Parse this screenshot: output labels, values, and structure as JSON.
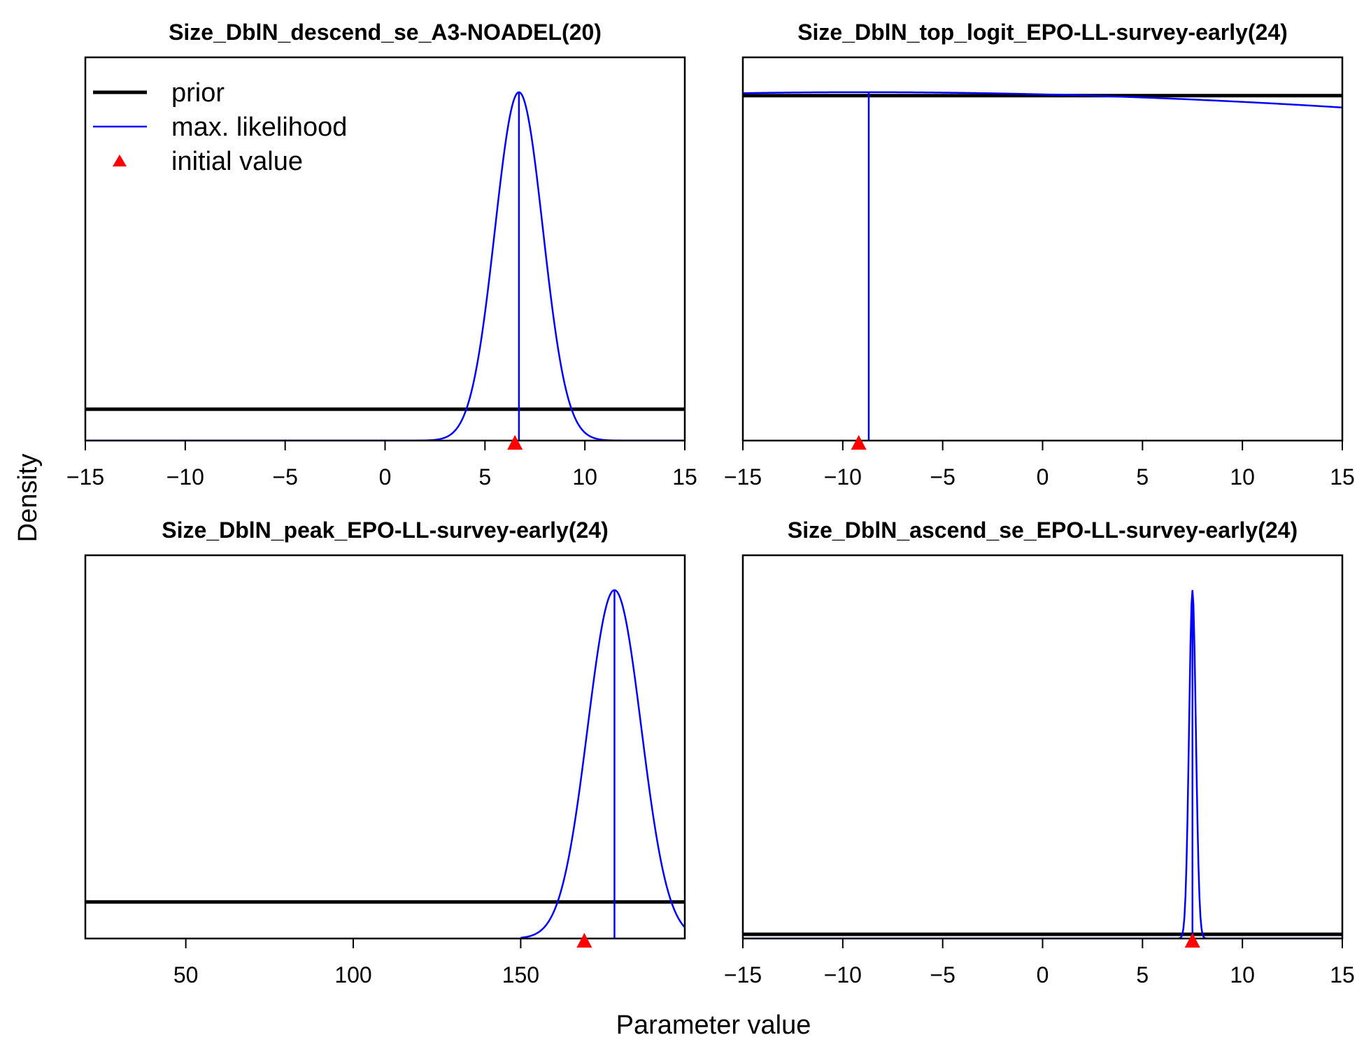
{
  "figure": {
    "xlabel": "Parameter value",
    "ylabel": "Density",
    "legend": {
      "placement": "top-left of first panel",
      "items": [
        {
          "label": "prior",
          "kind": "line",
          "color": "#000000"
        },
        {
          "label": "max. likelihood",
          "kind": "line",
          "color": "#0000ff"
        },
        {
          "label": "initial value",
          "kind": "triangle",
          "color": "#ff0000"
        }
      ]
    }
  },
  "colors": {
    "prior": "#000000",
    "likelihood": "#0000ff",
    "initial": "#ff0000"
  },
  "chart_data": [
    {
      "type": "line",
      "title": "Size_DblN_descend_se_A3-NOADEL(20)",
      "xlim": [
        -15,
        15
      ],
      "xticks": [
        -15,
        -10,
        -5,
        0,
        5,
        10,
        15
      ],
      "ylim": [
        0,
        1.1
      ],
      "prior_level": 0.09,
      "likelihood": {
        "kind": "normal",
        "mean": 6.7,
        "sd": 1.2,
        "peak": 1.0,
        "x_range": [
          -15,
          15
        ]
      },
      "mle": 6.7,
      "initial_value": 6.5
    },
    {
      "type": "line",
      "title": "Size_DblN_top_logit_EPO-LL-survey-early(24)",
      "xlim": [
        -15,
        15
      ],
      "xticks": [
        -15,
        -10,
        -5,
        0,
        5,
        10,
        15
      ],
      "ylim": [
        0,
        1.1
      ],
      "prior_level": 0.99,
      "likelihood": {
        "kind": "normal",
        "mean": -9,
        "sd": 80,
        "peak": 1.0,
        "x_range": [
          -15,
          15
        ]
      },
      "mle": -8.7,
      "initial_value": -9.2
    },
    {
      "type": "line",
      "title": "Size_DblN_peak_EPO-LL-survey-early(24)",
      "xlim": [
        20,
        199
      ],
      "xticks": [
        50,
        100,
        150
      ],
      "ylim": [
        0,
        1.1
      ],
      "prior_level": 0.105,
      "likelihood": {
        "kind": "normal",
        "mean": 178,
        "sd": 8,
        "peak": 1.0,
        "x_range": [
          150,
          199
        ]
      },
      "mle": 178,
      "initial_value": 169
    },
    {
      "type": "line",
      "title": "Size_DblN_ascend_se_EPO-LL-survey-early(24)",
      "xlim": [
        -15,
        15
      ],
      "xticks": [
        -15,
        -10,
        -5,
        0,
        5,
        10,
        15
      ],
      "ylim": [
        0,
        1.1
      ],
      "prior_level": 0.012,
      "likelihood": {
        "kind": "normal",
        "mean": 7.5,
        "sd": 0.17,
        "peak": 1.0,
        "x_range": [
          -15,
          15
        ]
      },
      "mle": 7.5,
      "initial_value": 7.5
    }
  ]
}
